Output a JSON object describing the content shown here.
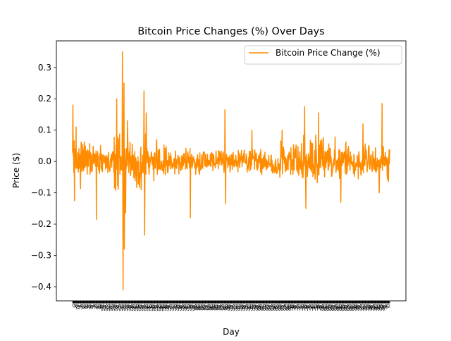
{
  "chart_data": {
    "type": "line",
    "title": "Bitcoin Price Changes (%) Over Days",
    "xlabel": "Day",
    "ylabel": "Price ($)",
    "ylim": [
      -0.445,
      0.385
    ],
    "yticks": [
      -0.4,
      -0.3,
      -0.2,
      -0.1,
      0.0,
      0.1,
      0.2,
      0.3
    ],
    "ytick_labels": [
      "−0.4",
      "−0.3",
      "−0.2",
      "−0.1",
      "0.0",
      "0.1",
      "0.2",
      "0.3"
    ],
    "x_count": 1000,
    "grid": false,
    "legend_position": "upper right",
    "series": [
      {
        "name": "Bitcoin Price Change (%)",
        "color": "#ff8c00",
        "spikes": [
          {
            "index": 1,
            "value": 0.18
          },
          {
            "index": 6,
            "value": -0.125
          },
          {
            "index": 11,
            "value": 0.11
          },
          {
            "index": 75,
            "value": -0.185
          },
          {
            "index": 139,
            "value": 0.2
          },
          {
            "index": 157,
            "value": 0.35
          },
          {
            "index": 159,
            "value": -0.41
          },
          {
            "index": 162,
            "value": 0.25
          },
          {
            "index": 163,
            "value": -0.28
          },
          {
            "index": 167,
            "value": -0.165
          },
          {
            "index": 173,
            "value": 0.13
          },
          {
            "index": 225,
            "value": 0.225
          },
          {
            "index": 227,
            "value": -0.235
          },
          {
            "index": 232,
            "value": 0.155
          },
          {
            "index": 371,
            "value": -0.18
          },
          {
            "index": 480,
            "value": 0.165
          },
          {
            "index": 482,
            "value": -0.135
          },
          {
            "index": 565,
            "value": 0.1
          },
          {
            "index": 660,
            "value": 0.1
          },
          {
            "index": 731,
            "value": 0.175
          },
          {
            "index": 735,
            "value": -0.15
          },
          {
            "index": 775,
            "value": 0.155
          },
          {
            "index": 845,
            "value": -0.13
          },
          {
            "index": 915,
            "value": 0.12
          },
          {
            "index": 975,
            "value": 0.185
          },
          {
            "index": 966,
            "value": -0.1
          }
        ]
      }
    ]
  }
}
